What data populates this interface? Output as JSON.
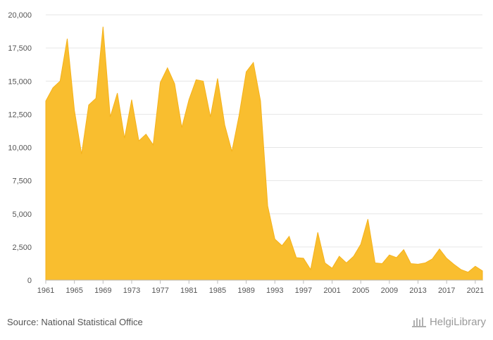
{
  "chart_data": {
    "type": "area",
    "color": "#f5b21b",
    "fill_color": "#f9be2f",
    "gridline_color": "#e6e6e6",
    "ylim": [
      0,
      20000
    ],
    "y_ticks": [
      0,
      2500,
      5000,
      7500,
      10000,
      12500,
      15000,
      17500,
      20000
    ],
    "y_tick_labels": [
      "0",
      "2,500",
      "5,000",
      "7,500",
      "10,000",
      "12,500",
      "15,000",
      "17,500",
      "20,000"
    ],
    "x_tick_labels": [
      "1961",
      "1965",
      "1969",
      "1973",
      "1977",
      "1981",
      "1985",
      "1989",
      "1993",
      "1997",
      "2001",
      "2005",
      "2009",
      "2013",
      "2017",
      "2021"
    ],
    "grid": true,
    "x": [
      1961,
      1962,
      1963,
      1964,
      1965,
      1966,
      1967,
      1968,
      1969,
      1970,
      1971,
      1972,
      1973,
      1974,
      1975,
      1976,
      1977,
      1978,
      1979,
      1980,
      1981,
      1982,
      1983,
      1984,
      1985,
      1986,
      1987,
      1988,
      1989,
      1990,
      1991,
      1992,
      1993,
      1994,
      1995,
      1996,
      1997,
      1998,
      1999,
      2000,
      2001,
      2002,
      2003,
      2004,
      2005,
      2006,
      2007,
      2008,
      2009,
      2010,
      2011,
      2012,
      2013,
      2014,
      2015,
      2016,
      2017,
      2018,
      2019,
      2020,
      2021,
      2022
    ],
    "values": [
      13500,
      14500,
      15000,
      18200,
      12800,
      9500,
      13200,
      13700,
      19100,
      12300,
      14100,
      10700,
      13600,
      10500,
      11000,
      10200,
      14900,
      16000,
      14800,
      11500,
      13600,
      15100,
      15000,
      12300,
      15200,
      11700,
      9700,
      12400,
      15700,
      16400,
      13500,
      5600,
      3100,
      2600,
      3300,
      1700,
      1650,
      800,
      3600,
      1300,
      900,
      1800,
      1300,
      1800,
      2700,
      4600,
      1300,
      1250,
      1900,
      1700,
      2300,
      1250,
      1200,
      1300,
      1600,
      2350,
      1650,
      1200,
      800,
      600,
      1050,
      700
    ],
    "title": "",
    "xlabel": "",
    "ylabel": ""
  },
  "footer": {
    "source_text": "Source: National Statistical Office",
    "brand_text": "HelgiLibrary",
    "brand_icon": "library-icon"
  }
}
